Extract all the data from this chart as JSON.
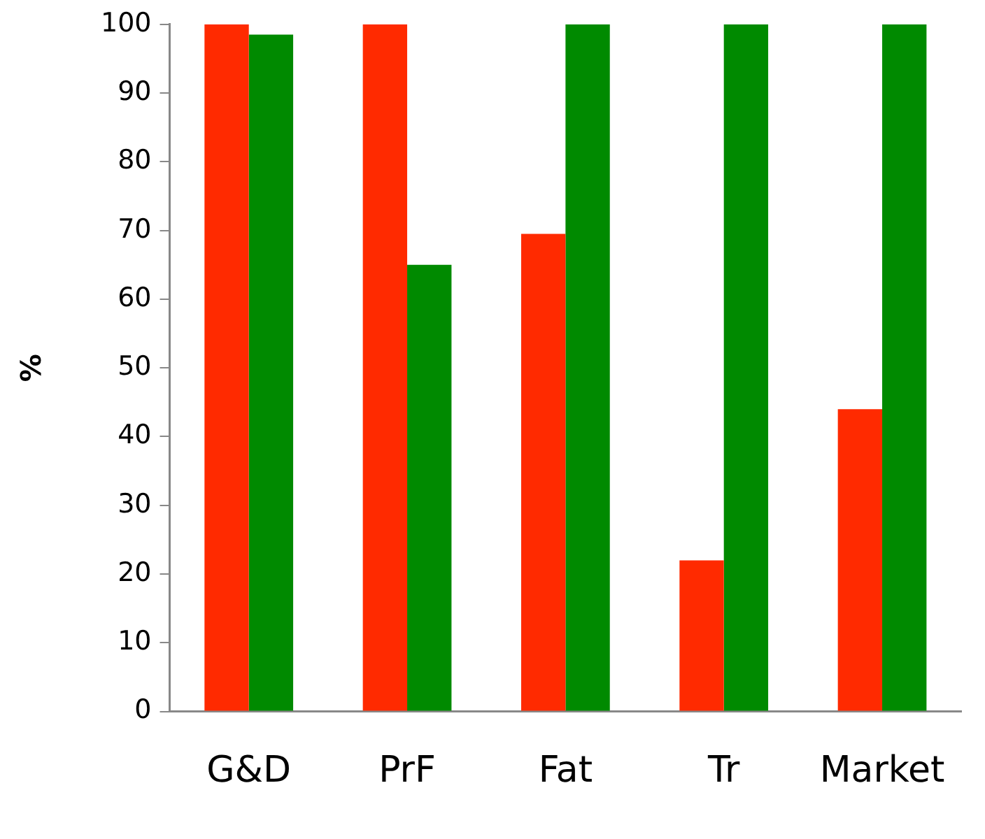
{
  "chart_data": {
    "type": "bar",
    "ylabel": "%",
    "categories": [
      "G&D",
      "PrF",
      "Fat",
      "Tr",
      "Market"
    ],
    "series": [
      {
        "color": "#ff2a00",
        "values": [
          100,
          100,
          69.5,
          22,
          44
        ]
      },
      {
        "color": "#008a00",
        "values": [
          98.5,
          65,
          100,
          100,
          100
        ]
      }
    ],
    "ylim": [
      0,
      100
    ],
    "yticks": [
      0,
      10,
      20,
      30,
      40,
      50,
      60,
      70,
      80,
      90,
      100
    ],
    "grid": false,
    "legend": false
  }
}
